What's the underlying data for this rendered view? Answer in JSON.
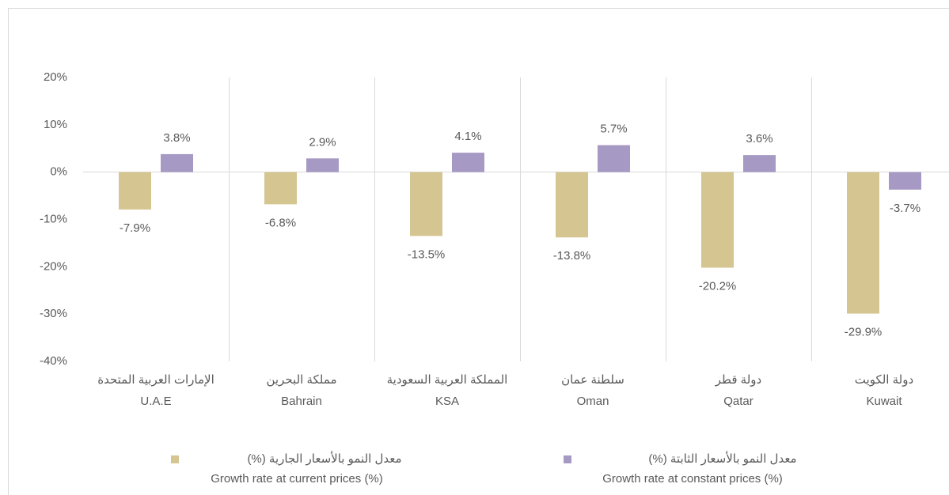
{
  "chart_data": {
    "type": "bar",
    "categories": [
      [
        "الإمارات العربية المتحدة",
        "U.A.E"
      ],
      [
        "مملكة البحرين",
        "Bahrain"
      ],
      [
        "المملكة العربية السعودية",
        "KSA"
      ],
      [
        "سلطنة عمان",
        "Oman"
      ],
      [
        "دولة قطر",
        "Qatar"
      ],
      [
        "دولة الكويت",
        "Kuwait"
      ]
    ],
    "series": [
      {
        "name": [
          "معدل النمو بالأسعار الجارية (%)",
          "Growth rate at current prices (%)"
        ],
        "color": "#d5c591",
        "values": [
          -7.9,
          -6.8,
          -13.5,
          -13.8,
          -20.2,
          -29.9
        ],
        "value_labels": [
          "-7.9%",
          "-6.8%",
          "-13.5%",
          "-13.8%",
          "-20.2%",
          "-29.9%"
        ]
      },
      {
        "name": [
          "معدل النمو بالأسعار الثابتة (%)",
          "Growth rate at constant prices (%)"
        ],
        "color": "#a699c3",
        "values": [
          3.8,
          2.9,
          4.1,
          5.7,
          3.6,
          -3.7
        ],
        "value_labels": [
          "3.8%",
          "2.9%",
          "4.1%",
          "5.7%",
          "3.6%",
          "-3.7%"
        ]
      }
    ],
    "ylim": [
      -40,
      20
    ],
    "yticks": [
      {
        "value": -40,
        "label": "-40%"
      },
      {
        "value": -30,
        "label": "-30%"
      },
      {
        "value": -20,
        "label": "-20%"
      },
      {
        "value": -10,
        "label": "-10%"
      },
      {
        "value": 0,
        "label": "0%"
      },
      {
        "value": 10,
        "label": "10%"
      },
      {
        "value": 20,
        "label": "20%"
      }
    ],
    "legend": "bottom"
  }
}
